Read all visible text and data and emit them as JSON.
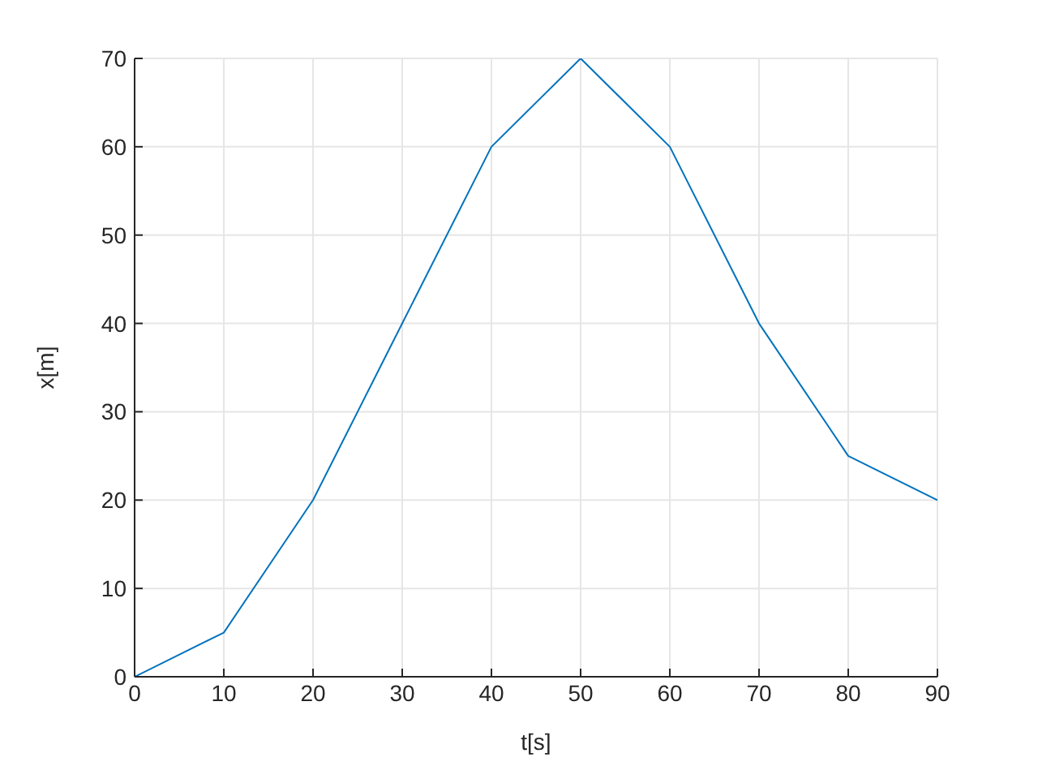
{
  "chart_data": {
    "type": "line",
    "xlabel": "t[s]",
    "ylabel": "x[m]",
    "x": [
      0,
      10,
      20,
      30,
      40,
      50,
      60,
      70,
      80,
      90
    ],
    "series": [
      {
        "color": "#0072bd",
        "values": [
          0,
          5,
          20,
          40,
          60,
          70,
          60,
          40,
          25,
          20
        ]
      }
    ],
    "xlim": [
      0,
      90
    ],
    "xticks": [
      0,
      10,
      20,
      30,
      40,
      50,
      60,
      70,
      80,
      90
    ],
    "ylim": [
      0,
      70
    ],
    "yticks": [
      0,
      10,
      20,
      30,
      40,
      50,
      60,
      70
    ],
    "grid": true,
    "marker": "none",
    "line_style": "solid"
  }
}
